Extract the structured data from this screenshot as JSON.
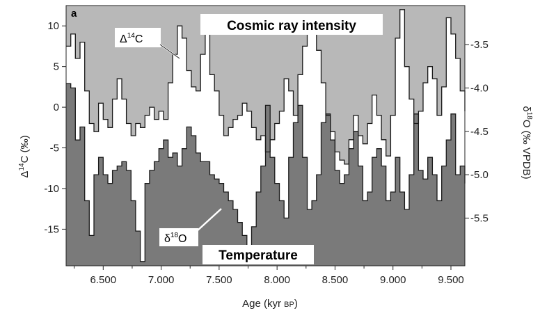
{
  "chart_data": {
    "type": "line",
    "panel_label": "a",
    "xlabel": "Age (kyr BP)",
    "xlabel_main": "Age (kyr ",
    "xlabel_unit_sc": "BP",
    "xlabel_close": ")",
    "xlim": [
      6.18,
      9.62
    ],
    "xticks": [
      "6.500",
      "7.000",
      "7.500",
      "8.000",
      "8.500",
      "9.000",
      "9.500"
    ],
    "xtick_values": [
      6.5,
      7.0,
      7.5,
      8.0,
      8.5,
      9.0,
      9.5
    ],
    "ylabel_left": "Δ14C (‰)",
    "ylabel_left_main": "Δ",
    "ylabel_left_sup": "14",
    "ylabel_left_rest": "C (‰)",
    "ylim_left": [
      -19.5,
      12.5
    ],
    "yticks_left": [
      "10",
      "5",
      "0",
      "-5",
      "-10",
      "-15"
    ],
    "ytick_left_values": [
      10,
      5,
      0,
      -5,
      -10,
      -15
    ],
    "ylabel_right": "δ18O (‰ VPDB)",
    "ylabel_right_main": "δ",
    "ylabel_right_sup": "18",
    "ylabel_right_rest": "O (‰ VPDB)",
    "ylim_right": [
      -3.05,
      -6.05
    ],
    "yticks_right": [
      "-3.5",
      "-4.0",
      "-4.5",
      "-5.0",
      "-5.5"
    ],
    "ytick_right_values": [
      -3.5,
      -4.0,
      -4.5,
      -5.0,
      -5.5
    ],
    "annotations": {
      "top": "Cosmic ray intensity",
      "bottom": "Temperature"
    },
    "series": [
      {
        "name": "Δ14C",
        "label_main": "Δ",
        "label_sup": "14",
        "label_rest": "C",
        "axis": "left",
        "fill_color": "#b8b8b8",
        "x": [
          6.18,
          6.22,
          6.26,
          6.3,
          6.34,
          6.38,
          6.42,
          6.46,
          6.5,
          6.54,
          6.58,
          6.62,
          6.66,
          6.7,
          6.74,
          6.78,
          6.82,
          6.86,
          6.9,
          6.94,
          6.98,
          7.02,
          7.06,
          7.1,
          7.14,
          7.18,
          7.22,
          7.26,
          7.3,
          7.34,
          7.38,
          7.42,
          7.46,
          7.5,
          7.54,
          7.58,
          7.62,
          7.66,
          7.7,
          7.74,
          7.78,
          7.82,
          7.86,
          7.9,
          7.94,
          7.98,
          8.02,
          8.06,
          8.1,
          8.14,
          8.18,
          8.22,
          8.26,
          8.3,
          8.34,
          8.38,
          8.42,
          8.46,
          8.5,
          8.54,
          8.58,
          8.62,
          8.66,
          8.7,
          8.74,
          8.78,
          8.82,
          8.86,
          8.9,
          8.94,
          8.98,
          9.02,
          9.06,
          9.1,
          9.14,
          9.18,
          9.22,
          9.26,
          9.3,
          9.34,
          9.38,
          9.42,
          9.46,
          9.5,
          9.54,
          9.58,
          9.62
        ],
        "values": [
          7.5,
          9.0,
          6.0,
          8.0,
          2.0,
          -2.0,
          -3.0,
          0.5,
          -1.5,
          -2.5,
          1.0,
          3.5,
          1.0,
          -2.0,
          -3.5,
          -2.0,
          -2.5,
          -1.0,
          0.0,
          -1.5,
          -0.5,
          -1.5,
          3.0,
          6.5,
          10.0,
          8.5,
          4.5,
          2.5,
          2.0,
          6.5,
          9.0,
          4.0,
          2.0,
          -1.0,
          -3.5,
          -2.5,
          -1.5,
          -1.0,
          0.5,
          -0.5,
          -2.5,
          -4.0,
          -3.5,
          -5.5,
          -4.0,
          -2.0,
          -0.5,
          3.5,
          2.0,
          -1.0,
          4.0,
          7.5,
          9.5,
          9.0,
          7.0,
          3.0,
          -1.0,
          -3.0,
          -5.5,
          -6.5,
          -7.0,
          -4.0,
          -1.0,
          -3.5,
          -4.5,
          -2.0,
          1.5,
          -1.0,
          -4.0,
          -6.0,
          -1.0,
          8.5,
          12.0,
          5.0,
          1.0,
          -2.0,
          -0.5,
          3.0,
          5.0,
          3.5,
          -1.0,
          2.5,
          11.0,
          9.0,
          6.0,
          2.0,
          -0.5
        ]
      },
      {
        "name": "δ18O",
        "label_main": "δ",
        "label_sup": "18",
        "label_rest": "O",
        "axis": "right",
        "fill_color": "#7a7a7a",
        "x": [
          6.18,
          6.22,
          6.26,
          6.3,
          6.34,
          6.38,
          6.42,
          6.46,
          6.5,
          6.54,
          6.58,
          6.62,
          6.66,
          6.7,
          6.74,
          6.78,
          6.82,
          6.86,
          6.9,
          6.94,
          6.98,
          7.02,
          7.06,
          7.1,
          7.14,
          7.18,
          7.22,
          7.26,
          7.3,
          7.34,
          7.38,
          7.42,
          7.46,
          7.5,
          7.54,
          7.58,
          7.62,
          7.66,
          7.7,
          7.74,
          7.78,
          7.82,
          7.86,
          7.9,
          7.94,
          7.98,
          8.02,
          8.06,
          8.1,
          8.14,
          8.18,
          8.22,
          8.26,
          8.3,
          8.34,
          8.38,
          8.42,
          8.46,
          8.5,
          8.54,
          8.58,
          8.62,
          8.66,
          8.7,
          8.74,
          8.78,
          8.82,
          8.86,
          8.9,
          8.94,
          8.98,
          9.02,
          9.06,
          9.1,
          9.14,
          9.18,
          9.22,
          9.26,
          9.3,
          9.34,
          9.38,
          9.42,
          9.46,
          9.5,
          9.54,
          9.58,
          9.62
        ],
        "values": [
          -3.95,
          -4.0,
          -4.6,
          -4.45,
          -5.3,
          -5.7,
          -5.0,
          -4.8,
          -5.0,
          -5.1,
          -4.95,
          -4.9,
          -4.85,
          -4.95,
          -5.3,
          -5.65,
          -6.0,
          -5.1,
          -4.95,
          -4.85,
          -4.7,
          -4.6,
          -4.8,
          -4.75,
          -4.9,
          -4.7,
          -4.45,
          -4.55,
          -4.75,
          -4.85,
          -4.85,
          -5.0,
          -5.05,
          -5.1,
          -5.2,
          -5.3,
          -5.4,
          -5.55,
          -5.7,
          -5.9,
          -5.6,
          -5.2,
          -4.9,
          -4.2,
          -4.8,
          -5.1,
          -5.3,
          -5.5,
          -4.8,
          -4.4,
          -4.2,
          -4.8,
          -5.4,
          -5.3,
          -5.0,
          -4.4,
          -4.3,
          -4.6,
          -4.95,
          -5.1,
          -5.0,
          -4.7,
          -4.5,
          -4.9,
          -5.3,
          -5.2,
          -4.8,
          -4.7,
          -4.9,
          -5.3,
          -5.2,
          -4.8,
          -5.2,
          -5.4,
          -5.0,
          -4.3,
          -4.95,
          -5.05,
          -4.8,
          -5.0,
          -5.3,
          -4.9,
          -4.6,
          -4.3,
          -5.0,
          -4.9,
          -5.1
        ]
      }
    ]
  }
}
